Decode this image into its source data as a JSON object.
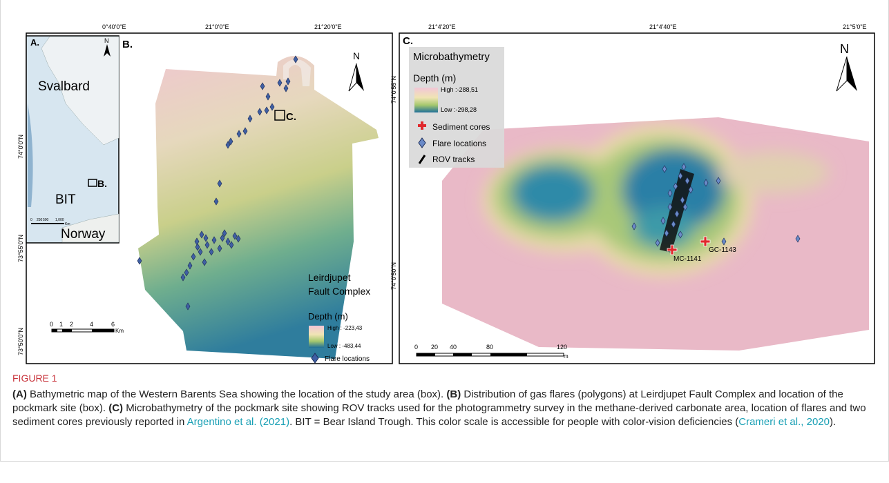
{
  "panel_a": {
    "label": "A.",
    "north": "N",
    "places": [
      "Svalbard",
      "BIT",
      "Norway"
    ],
    "box_label": "B.",
    "scale": [
      "0",
      "250",
      "500",
      "1,000",
      "Km"
    ]
  },
  "panel_b": {
    "label": "B.",
    "box_label": "C.",
    "north": "N",
    "top_ticks": [
      "0°40'0\"E",
      "21°0'0\"E",
      "21°20'0\"E"
    ],
    "left_ticks": [
      "74°0'0\"N",
      "73°55'0\"N",
      "73°50'0\"N"
    ],
    "area": [
      "Leirdjupet",
      "Fault Complex"
    ],
    "legend": {
      "title": "Depth (m)",
      "high": "High : -223,43",
      "low": "Low : -483,44",
      "flares": "Flare locations"
    },
    "scale": [
      "0",
      "1",
      "2",
      "4",
      "6",
      "Km"
    ]
  },
  "panel_c": {
    "label": "C.",
    "north": "N",
    "top_ticks": [
      "21°4'20\"E",
      "21°4'40\"E",
      "21°5'0\"E"
    ],
    "left_ticks": [
      "74°0'55\"N",
      "74°0'50\"N"
    ],
    "legend": {
      "title": "Microbathymetry",
      "depth": "Depth (m)",
      "high": "High :-288,51",
      "low": "Low :-298,28",
      "cores": "Sediment cores",
      "flares": "Flare locations",
      "rov": "ROV tracks"
    },
    "cores": [
      "MC-1141",
      "GC-1143"
    ],
    "scale": [
      "0",
      "20",
      "40",
      "80",
      "120",
      "m"
    ]
  },
  "caption": {
    "label": "FIGURE 1",
    "parts": [
      "(A)",
      " Bathymetric map of the Western Barents Sea showing the location of the study area (box). ",
      "(B)",
      " Distribution of gas flares (polygons) at Leirdjupet Fault Complex and location of the pockmark site (box). ",
      "(C)",
      " Microbathymetry of the pockmark site showing ROV tracks used for the photogrammetry survey in the methane-derived carbonate area, location of flares and two sediment cores previously reported in ",
      "Argentino et al. (2021)",
      ". BIT = Bear Island Trough. This color scale is accessible for people with color-vision deficiencies (",
      "Crameri et al., 2020",
      ")."
    ]
  }
}
